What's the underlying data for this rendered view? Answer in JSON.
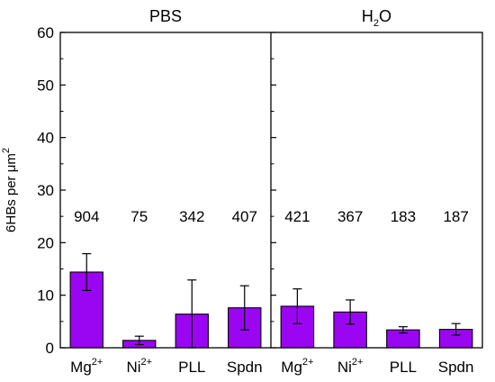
{
  "chart_data": {
    "type": "bar",
    "ylabel": "6HBs per μm",
    "ylabel_sup": "2",
    "ylim": [
      0,
      60
    ],
    "yticks": [
      "0",
      "10",
      "20",
      "30",
      "40",
      "50",
      "60"
    ],
    "bar_color": "#9b06f2",
    "annotation_y": 25,
    "panels": [
      {
        "title": "PBS",
        "title_sub": "",
        "categories": [
          {
            "base": "Mg",
            "sup": "2+"
          },
          {
            "base": "Ni",
            "sup": "2+"
          },
          {
            "base": "PLL",
            "sup": ""
          },
          {
            "base": "Spdn",
            "sup": ""
          }
        ],
        "values": [
          14.4,
          1.4,
          6.4,
          7.6
        ],
        "errors": [
          3.5,
          0.8,
          6.5,
          4.2
        ],
        "counts": [
          "904",
          "75",
          "342",
          "407"
        ]
      },
      {
        "title": "H",
        "title_sub": "2",
        "title_end": "O",
        "categories": [
          {
            "base": "Mg",
            "sup": "2+"
          },
          {
            "base": "Ni",
            "sup": "2+"
          },
          {
            "base": "PLL",
            "sup": ""
          },
          {
            "base": "Spdn",
            "sup": ""
          }
        ],
        "values": [
          7.9,
          6.8,
          3.4,
          3.5
        ],
        "errors": [
          3.3,
          2.3,
          0.6,
          1.1
        ],
        "counts": [
          "421",
          "367",
          "183",
          "187"
        ]
      }
    ]
  }
}
